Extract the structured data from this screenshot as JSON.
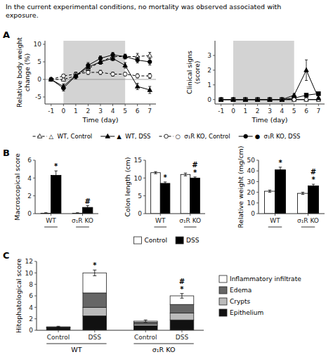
{
  "chart_data": [
    {
      "type": "line",
      "title": "A",
      "annotations": [
        "In the current experimental conditions, no mortality was observed associated with\nexposure."
      ],
      "x_label": "Time (day)",
      "y_label": "Relative body weight\nchange (%)",
      "x": [
        -1,
        0,
        1,
        2,
        3,
        4,
        5,
        6,
        7
      ],
      "xlim": [
        -1.5,
        7.5
      ],
      "ylim": [
        -7,
        11
      ],
      "xticks": [
        -1,
        0,
        1,
        2,
        3,
        4,
        5,
        6,
        7
      ],
      "yticks": [
        -5,
        0,
        5,
        10
      ],
      "shade": {
        "x": [
          0,
          5
        ],
        "color": "#d3d3d3"
      },
      "zero_line": 0,
      "legend": "bottom",
      "series": [
        {
          "name": "△  WT, Control",
          "color": "black",
          "marker": "triangle-open",
          "line_style": "dashed",
          "values": [
            0,
            0.0,
            1.0,
            3.0,
            5.0,
            6.5,
            6.5,
            6.5,
            6.8
          ],
          "errors": [
            0.5,
            0.5,
            0.8,
            0.8,
            0.7,
            0.7,
            0.6,
            0.9,
            0.9
          ]
        },
        {
          "name": "▲  WT, DSS",
          "color": "black",
          "marker": "triangle",
          "line_style": "solid",
          "values": [
            0,
            -2.0,
            1.2,
            3.5,
            5.0,
            6.0,
            4.0,
            -2.0,
            -3.0
          ],
          "errors": [
            0.5,
            0.7,
            0.8,
            0.8,
            0.7,
            0.7,
            0.8,
            0.9,
            1.0
          ]
        },
        {
          "name": "○  σ₁R KO, Control",
          "color": "black",
          "marker": "circle-open",
          "line_style": "dashed",
          "values": [
            0,
            1.0,
            1.5,
            2.0,
            2.0,
            1.5,
            1.5,
            1.0,
            1.0
          ],
          "errors": [
            0.4,
            0.5,
            0.6,
            0.6,
            0.6,
            0.6,
            0.5,
            0.6,
            0.7
          ]
        },
        {
          "name": "●  σ₁R KO, DSS",
          "color": "black",
          "marker": "circle",
          "line_style": "solid",
          "values": [
            0,
            -2.5,
            1.0,
            4.0,
            6.0,
            7.0,
            6.5,
            5.5,
            5.0
          ],
          "errors": [
            0.5,
            0.8,
            0.8,
            0.8,
            0.7,
            0.7,
            0.7,
            0.8,
            0.9
          ]
        }
      ]
    },
    {
      "type": "line",
      "x_label": "Time (day)",
      "y_label": "Clinical signs\n(score)",
      "x": [
        -1,
        0,
        1,
        2,
        3,
        4,
        5,
        6,
        7
      ],
      "xlim": [
        -1.5,
        7.5
      ],
      "ylim": [
        -0.3,
        4
      ],
      "xticks": [
        -1,
        0,
        1,
        2,
        3,
        4,
        5,
        6,
        7
      ],
      "yticks": [
        0,
        1,
        2,
        3
      ],
      "shade": {
        "x": [
          0,
          5
        ],
        "color": "#d3d3d3"
      },
      "series": [
        {
          "color": "black",
          "marker": "triangle-open",
          "line_style": "solid",
          "values": [
            0,
            0,
            0,
            0,
            0,
            0,
            0,
            0,
            0
          ],
          "errors": [
            0,
            0,
            0,
            0,
            0,
            0,
            0,
            0,
            0
          ]
        },
        {
          "color": "black",
          "marker": "square",
          "line_style": "solid",
          "values": [
            0,
            0,
            0,
            0,
            0,
            0,
            0.1,
            0.3,
            0.4
          ],
          "errors": [
            0,
            0,
            0,
            0,
            0,
            0,
            0.05,
            0.1,
            0.1
          ]
        },
        {
          "color": "black",
          "marker": "circle-open",
          "line_style": "solid",
          "values": [
            0,
            0,
            0,
            0,
            0,
            0,
            0,
            0,
            0
          ],
          "errors": [
            0,
            0,
            0,
            0,
            0,
            0,
            0,
            0,
            0
          ]
        },
        {
          "color": "black",
          "marker": "triangle",
          "line_style": "solid",
          "values": [
            0,
            0,
            0,
            0,
            0,
            0,
            0.3,
            2.0,
            0.1
          ],
          "errors": [
            0,
            0,
            0,
            0,
            0,
            0,
            0.1,
            0.7,
            0.05
          ]
        }
      ]
    },
    {
      "type": "bar",
      "title": "B",
      "y_label": "Macroscopical score",
      "categories": [
        "WT",
        "σ₁R KO"
      ],
      "ylim": [
        0,
        6
      ],
      "yticks": [
        0,
        2,
        4,
        6
      ],
      "legend": "bottom",
      "series": [
        {
          "name": "Control",
          "color": "white",
          "values": [
            0.05,
            0.05
          ],
          "errors": [
            0.05,
            0.05
          ]
        },
        {
          "name": "DSS",
          "color": "black",
          "values": [
            4.3,
            0.7
          ],
          "errors": [
            0.5,
            0.2
          ],
          "annotations": [
            "*",
            "#"
          ]
        }
      ]
    },
    {
      "type": "bar",
      "y_label": "Colon length (cm)",
      "categories": [
        "WT",
        "σ₁R KO"
      ],
      "ylim": [
        0,
        15
      ],
      "yticks": [
        0,
        5,
        10,
        15
      ],
      "series": [
        {
          "color": "white",
          "values": [
            11.5,
            11.0
          ],
          "errors": [
            0.3,
            0.4
          ]
        },
        {
          "color": "black",
          "values": [
            8.5,
            10.0
          ],
          "errors": [
            0.4,
            0.3
          ],
          "annotations": [
            "*",
            "* #"
          ]
        }
      ]
    },
    {
      "type": "bar",
      "y_label": "Relative weight (mg/cm)",
      "categories": [
        "WT",
        "σ₁R KO"
      ],
      "ylim": [
        0,
        50
      ],
      "yticks": [
        0,
        10,
        20,
        30,
        40,
        50
      ],
      "series": [
        {
          "color": "white",
          "values": [
            21.0,
            19.0
          ],
          "errors": [
            1.0,
            1.0
          ]
        },
        {
          "color": "black",
          "values": [
            41.0,
            26.0
          ],
          "errors": [
            2.5,
            1.5
          ],
          "annotations": [
            "*",
            "* #"
          ]
        }
      ]
    },
    {
      "type": "bar",
      "stacked": true,
      "title": "C",
      "y_label": "Hitophatological score",
      "categories": [
        "Control",
        "DSS",
        "Control",
        "DSS"
      ],
      "category_groups": [
        "WT",
        "WT",
        "σ₁R KO",
        "σ₁R KO"
      ],
      "ylim": [
        0,
        12
      ],
      "yticks": [
        0,
        2,
        4,
        6,
        8,
        10,
        12
      ],
      "legend": "right",
      "series": [
        {
          "name": "Epithelium",
          "color": "#111111",
          "values": [
            0.4,
            2.5,
            0.8,
            1.8
          ]
        },
        {
          "name": "Crypts",
          "color": "#bbbbbb",
          "values": [
            0.1,
            1.5,
            0.3,
            1.2
          ]
        },
        {
          "name": "Edema",
          "color": "#666666",
          "values": [
            0.1,
            2.5,
            0.3,
            1.5
          ]
        },
        {
          "name": "Inflammatory infiltrate",
          "color": "#ffffff",
          "values": [
            0.0,
            3.5,
            0.2,
            1.5
          ]
        }
      ],
      "totals": [
        0.6,
        10.0,
        1.6,
        6.0
      ],
      "total_errors": [
        0.1,
        0.5,
        0.2,
        0.4
      ],
      "annotations": [
        null,
        "*",
        null,
        "* #"
      ]
    }
  ]
}
